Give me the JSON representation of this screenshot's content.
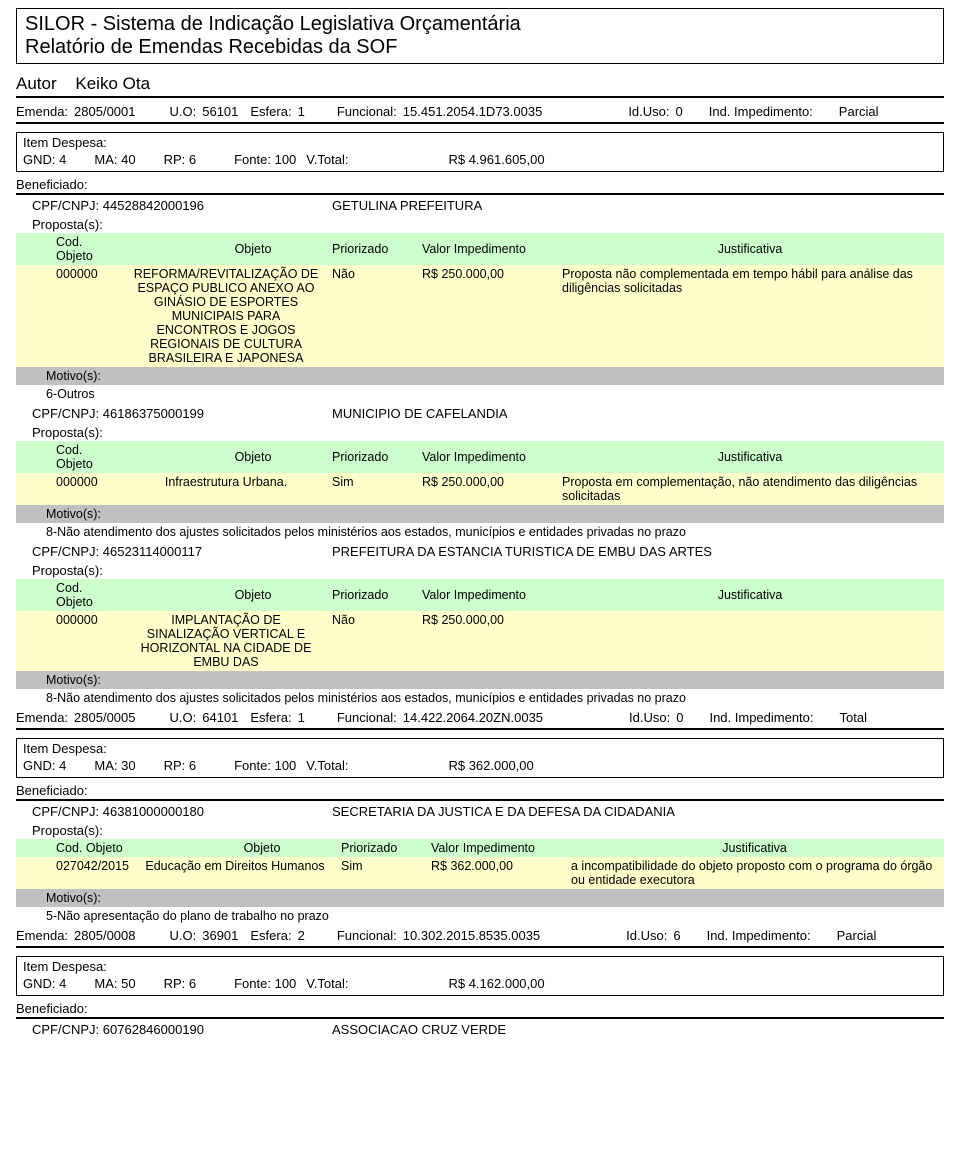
{
  "header": {
    "system": "SILOR - Sistema de Indicação Legislativa Orçamentária",
    "report": "Relatório de Emendas Recebidas da SOF"
  },
  "autor": {
    "label": "Autor",
    "name": "Keiko Ota"
  },
  "emendas": [
    {
      "emenda_lbl": "Emenda:",
      "emenda_num": "2805/0001",
      "uo_lbl": "U.O:",
      "uo": "56101",
      "esfera_lbl": "Esfera:",
      "esfera": "1",
      "func_lbl": "Funcional:",
      "func": "15.451.2054.1D73.0035",
      "iduso_lbl": "Id.Uso:",
      "iduso": "0",
      "imp_lbl": "Ind. Impedimento:",
      "imp": "Parcial",
      "despesa": {
        "label": "Item Despesa:",
        "gnd_lbl": "GND:",
        "gnd": "4",
        "ma_lbl": "MA:",
        "ma": "40",
        "rp_lbl": "RP:",
        "rp": "6",
        "fonte_lbl": "Fonte:",
        "fonte": "100",
        "vtotal_lbl": "V.Total:",
        "vtotal": "R$ 4.961.605,00"
      },
      "benef_label": "Beneficiado:",
      "beneficiados": [
        {
          "cpf_lbl": "CPF/CNPJ:",
          "cpf": "44528842000196",
          "name": "GETULINA PREFEITURA",
          "prop_lbl": "Proposta(s):",
          "headers": {
            "cod": "Cod. Objeto",
            "obj": "Objeto",
            "prio": "Priorizado",
            "valor": "Valor Impedimento",
            "just": "Justificativa"
          },
          "rows": [
            {
              "cod": "000000",
              "obj": "REFORMA/REVITALIZAÇÃO DE ESPAÇO PUBLICO ANEXO AO GINÁSIO DE ESPORTES MUNICIPAIS PARA ENCONTROS E JOGOS REGIONAIS DE CULTURA BRASILEIRA E JAPONESA",
              "prio": "Não",
              "valor": "R$ 250.000,00",
              "just": "Proposta não complementada em tempo hábil para análise das diligências solicitadas"
            }
          ],
          "motivo_lbl": "Motivo(s):",
          "motivo": "6-Outros"
        },
        {
          "cpf_lbl": "CPF/CNPJ:",
          "cpf": "46186375000199",
          "name": "MUNICIPIO DE CAFELANDIA",
          "prop_lbl": "Proposta(s):",
          "headers": {
            "cod": "Cod. Objeto",
            "obj": "Objeto",
            "prio": "Priorizado",
            "valor": "Valor Impedimento",
            "just": "Justificativa"
          },
          "rows": [
            {
              "cod": "000000",
              "obj": "Infraestrutura Urbana.",
              "prio": "Sim",
              "valor": "R$ 250.000,00",
              "just": "Proposta em complementação, não atendimento das diligências solicitadas"
            }
          ],
          "motivo_lbl": "Motivo(s):",
          "motivo": "8-Não atendimento dos ajustes solicitados pelos ministérios aos estados, municípios e entidades privadas no prazo"
        },
        {
          "cpf_lbl": "CPF/CNPJ:",
          "cpf": "46523114000117",
          "name": "PREFEITURA DA ESTANCIA TURISTICA DE EMBU DAS ARTES",
          "prop_lbl": "Proposta(s):",
          "headers": {
            "cod": "Cod. Objeto",
            "obj": "Objeto",
            "prio": "Priorizado",
            "valor": "Valor Impedimento",
            "just": "Justificativa"
          },
          "rows": [
            {
              "cod": "000000",
              "obj": "IMPLANTAÇÃO DE SINALIZAÇÃO VERTICAL E HORIZONTAL NA CIDADE DE EMBU DAS",
              "prio": "Não",
              "valor": "R$ 250.000,00",
              "just": ""
            }
          ],
          "motivo_lbl": "Motivo(s):",
          "motivo": "8-Não atendimento dos ajustes solicitados pelos ministérios aos estados, municípios e entidades privadas no prazo"
        }
      ]
    },
    {
      "emenda_lbl": "Emenda:",
      "emenda_num": "2805/0005",
      "uo_lbl": "U.O:",
      "uo": "64101",
      "esfera_lbl": "Esfera:",
      "esfera": "1",
      "func_lbl": "Funcional:",
      "func": "14.422.2064.20ZN.0035",
      "iduso_lbl": "Id.Uso:",
      "iduso": "0",
      "imp_lbl": "Ind. Impedimento:",
      "imp": "Total",
      "despesa": {
        "label": "Item Despesa:",
        "gnd_lbl": "GND:",
        "gnd": "4",
        "ma_lbl": "MA:",
        "ma": "30",
        "rp_lbl": "RP:",
        "rp": "6",
        "fonte_lbl": "Fonte:",
        "fonte": "100",
        "vtotal_lbl": "V.Total:",
        "vtotal": "R$ 362.000,00"
      },
      "benef_label": "Beneficiado:",
      "beneficiados": [
        {
          "cpf_lbl": "CPF/CNPJ:",
          "cpf": "46381000000180",
          "name": "SECRETARIA DA JUSTICA E DA DEFESA DA CIDADANIA",
          "prop_lbl": "Proposta(s):",
          "headers": {
            "cod": "Cod. Objeto",
            "obj": "Objeto",
            "prio": "Priorizado",
            "valor": "Valor Impedimento",
            "just": "Justificativa"
          },
          "rows": [
            {
              "cod": "027042/2015",
              "obj": "Educação em Direitos Humanos",
              "prio": "Sim",
              "valor": "R$ 362.000,00",
              "just": "a incompatibilidade do objeto proposto com o programa do órgão ou entidade executora"
            }
          ],
          "motivo_lbl": "Motivo(s):",
          "motivo": "5-Não apresentação do plano de trabalho no prazo"
        }
      ]
    },
    {
      "emenda_lbl": "Emenda:",
      "emenda_num": "2805/0008",
      "uo_lbl": "U.O:",
      "uo": "36901",
      "esfera_lbl": "Esfera:",
      "esfera": "2",
      "func_lbl": "Funcional:",
      "func": "10.302.2015.8535.0035",
      "iduso_lbl": "Id.Uso:",
      "iduso": "6",
      "imp_lbl": "Ind. Impedimento:",
      "imp": "Parcial",
      "despesa": {
        "label": "Item Despesa:",
        "gnd_lbl": "GND:",
        "gnd": "4",
        "ma_lbl": "MA:",
        "ma": "50",
        "rp_lbl": "RP:",
        "rp": "6",
        "fonte_lbl": "Fonte:",
        "fonte": "100",
        "vtotal_lbl": "V.Total:",
        "vtotal": "R$ 4.162.000,00"
      },
      "benef_label": "Beneficiado:",
      "beneficiados": [
        {
          "cpf_lbl": "CPF/CNPJ:",
          "cpf": "60762846000190",
          "name": "ASSOCIACAO CRUZ VERDE",
          "prop_lbl": "",
          "headers": null,
          "rows": [],
          "motivo_lbl": "",
          "motivo": ""
        }
      ]
    }
  ]
}
